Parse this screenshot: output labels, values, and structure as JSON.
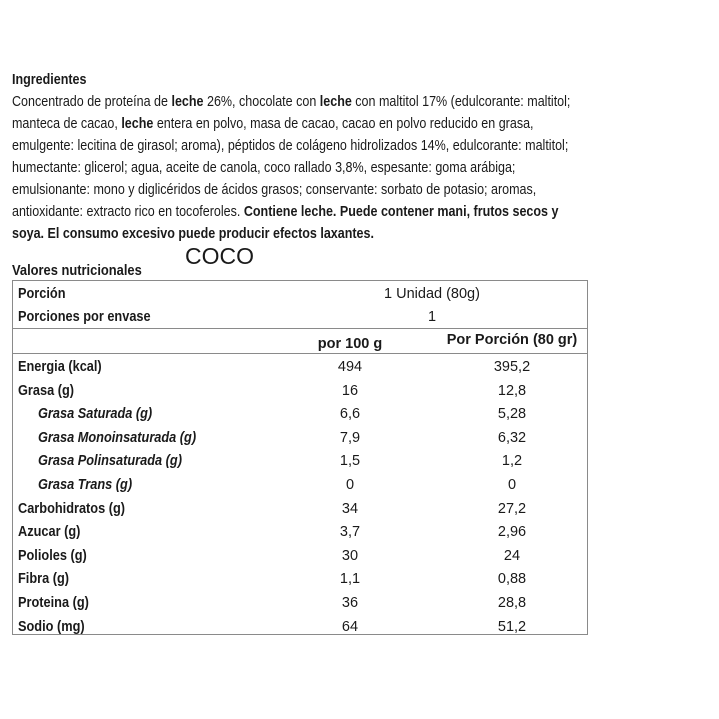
{
  "ingredients": {
    "title": "Ingredientes",
    "lines": [
      [
        {
          "t": "Concentrado de proteína de ",
          "b": false
        },
        {
          "t": "leche",
          "b": true
        },
        {
          "t": " 26%, chocolate con ",
          "b": false
        },
        {
          "t": "leche",
          "b": true
        },
        {
          "t": " con maltitol 17% (edulcorante: maltitol;",
          "b": false
        }
      ],
      [
        {
          "t": "manteca de cacao, ",
          "b": false
        },
        {
          "t": "leche",
          "b": true
        },
        {
          "t": " entera en polvo, masa de cacao, cacao en polvo reducido en grasa,",
          "b": false
        }
      ],
      [
        {
          "t": "emulgente: lecitina de girasol; aroma), péptidos de colágeno hidrolizados 14%, edulcorante: maltitol;",
          "b": false
        }
      ],
      [
        {
          "t": "humectante: glicerol; agua, aceite de canola, coco rallado 3,8%, espesante: goma arábiga;",
          "b": false
        }
      ],
      [
        {
          "t": "emulsionante: mono y diglicéridos de ácidos grasos; conservante: sorbato de potasio; aromas,",
          "b": false
        }
      ],
      [
        {
          "t": "antioxidante: extracto rico en tocoferoles. ",
          "b": false
        },
        {
          "t": "Contiene leche. Puede contener mani, frutos secos y",
          "b": true
        }
      ],
      [
        {
          "t": "soya. El consumo excesivo puede producir efectos laxantes.",
          "b": true
        }
      ]
    ]
  },
  "flavor": "COCO",
  "nutrition": {
    "title": "Valores nutricionales",
    "portion_label": "Porción",
    "portion_value": "1 Unidad (80g)",
    "servings_label": "Porciones por envase",
    "servings_value": "1",
    "col_100g": "por 100 g",
    "col_portion": "Por Porción (80 gr)",
    "rows": [
      {
        "label": "Energia (kcal)",
        "per100": "494",
        "perPortion": "395,2",
        "sub": false
      },
      {
        "label": "Grasa (g)",
        "per100": "16",
        "perPortion": "12,8",
        "sub": false
      },
      {
        "label": "Grasa Saturada (g)",
        "per100": "6,6",
        "perPortion": "5,28",
        "sub": true
      },
      {
        "label": "Grasa Monoinsaturada (g)",
        "per100": "7,9",
        "perPortion": "6,32",
        "sub": true
      },
      {
        "label": "Grasa Polinsaturada (g)",
        "per100": "1,5",
        "perPortion": "1,2",
        "sub": true
      },
      {
        "label": "Grasa Trans (g)",
        "per100": "0",
        "perPortion": "0",
        "sub": true
      },
      {
        "label": "Carbohidratos (g)",
        "per100": "34",
        "perPortion": "27,2",
        "sub": false
      },
      {
        "label": "Azucar (g)",
        "per100": "3,7",
        "perPortion": "2,96",
        "sub": false
      },
      {
        "label": "Polioles (g)",
        "per100": "30",
        "perPortion": "24",
        "sub": false
      },
      {
        "label": "Fibra (g)",
        "per100": "1,1",
        "perPortion": "0,88",
        "sub": false
      },
      {
        "label": "Proteina (g)",
        "per100": "36",
        "perPortion": "28,8",
        "sub": false
      },
      {
        "label": "Sodio (mg)",
        "per100": "64",
        "perPortion": "51,2",
        "sub": false
      }
    ]
  }
}
